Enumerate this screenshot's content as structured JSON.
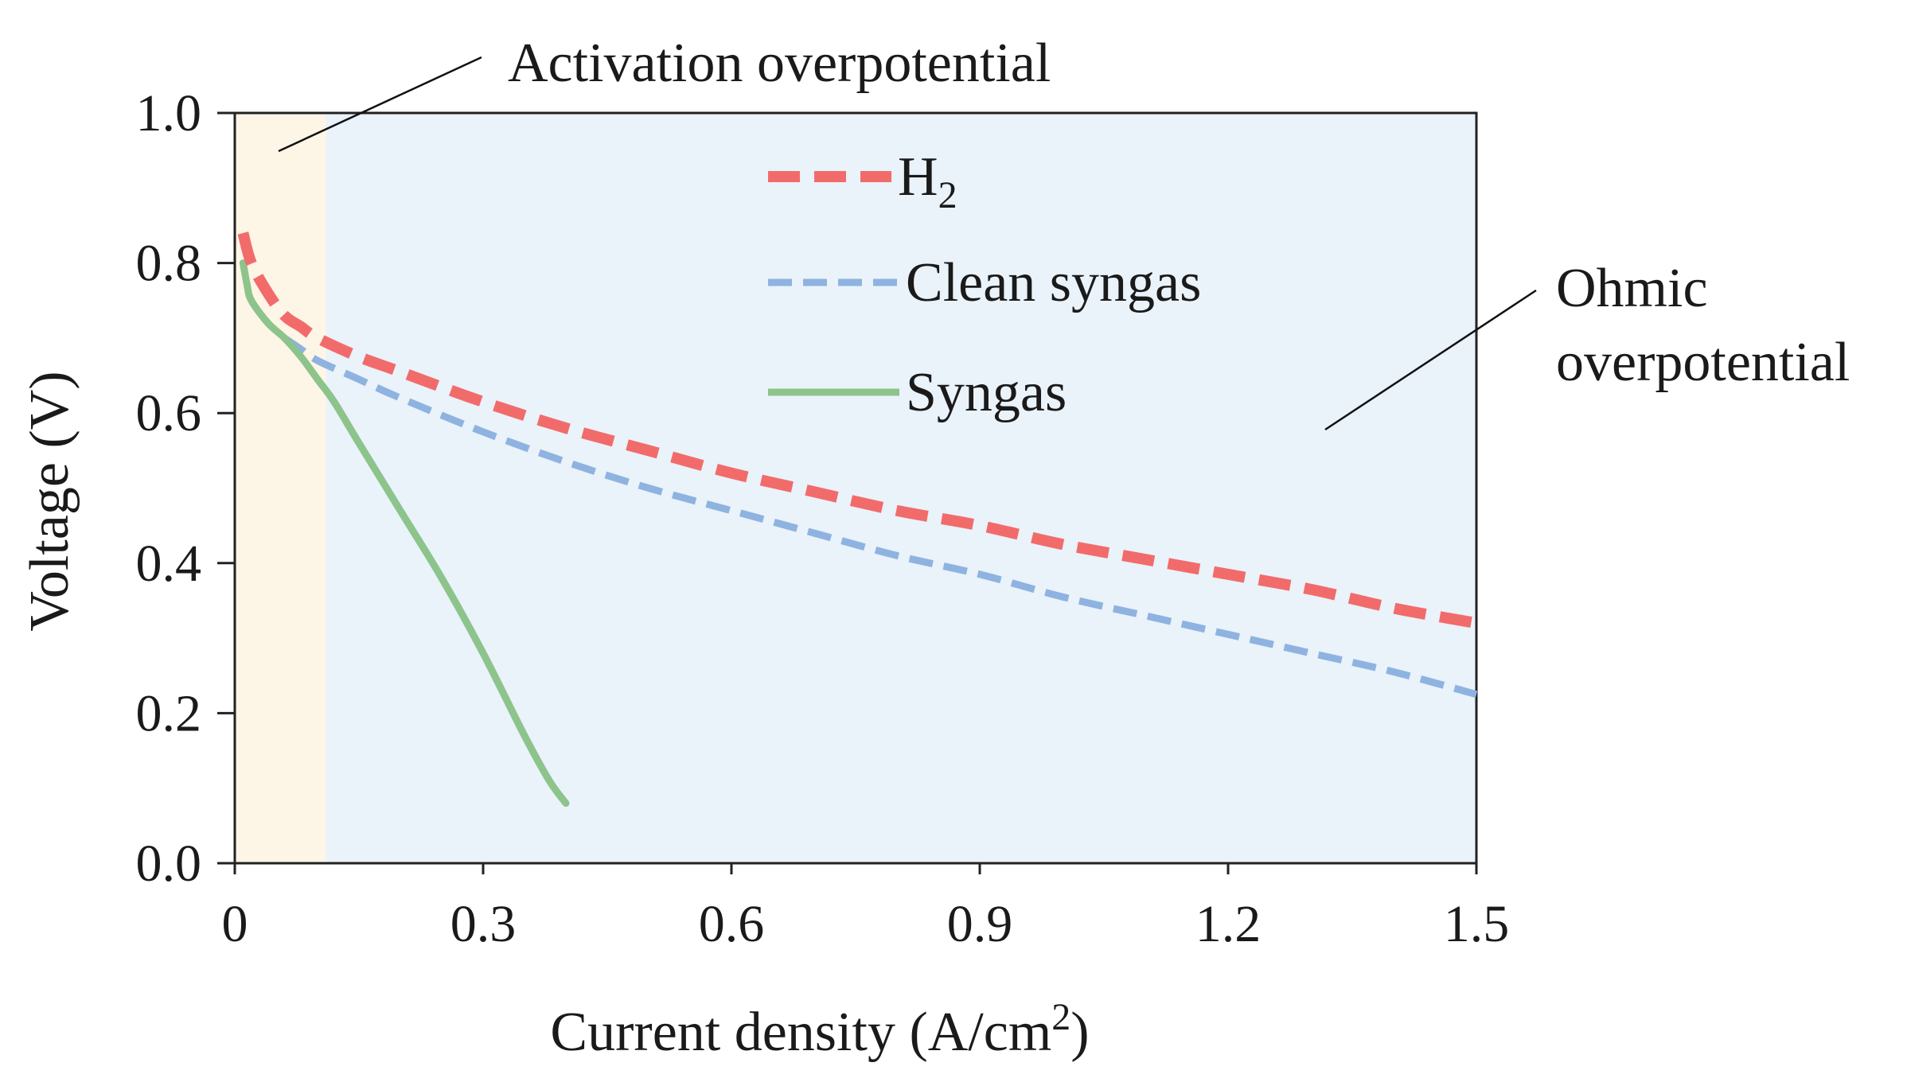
{
  "chart_data": {
    "type": "line",
    "xlabel": "Current density (A/cm",
    "xlabel_sup": "2",
    "xlabel_end": ")",
    "ylabel": "Voltage (V)",
    "xlim": [
      0,
      1.5
    ],
    "ylim": [
      0,
      1.0
    ],
    "xticks": [
      0,
      0.3,
      0.6,
      0.9,
      1.2,
      1.5
    ],
    "xtick_labels": [
      "0",
      "0.3",
      "0.6",
      "0.9",
      "1.2",
      "1.5"
    ],
    "yticks": [
      0,
      0.2,
      0.4,
      0.6,
      0.8,
      1.0
    ],
    "ytick_labels": [
      "0.0",
      "0.2",
      "0.4",
      "0.6",
      "0.8",
      "1.0"
    ],
    "regions": [
      {
        "name": "Activation overpotential",
        "x_range": [
          0,
          0.11
        ],
        "color": "#fdf5e6"
      },
      {
        "name": "Ohmic overpotential",
        "x_range": [
          0.11,
          1.5
        ],
        "color": "#eaf2fa"
      }
    ],
    "annotations": {
      "activation": "Activation overpotential",
      "ohmic_line1": "Ohmic",
      "ohmic_line2": "overpotential"
    },
    "legend_position": "top-center",
    "series": [
      {
        "name": "H",
        "name_sub": "2",
        "color": "#f26b6b",
        "style": "dashed",
        "x": [
          0.01,
          0.02,
          0.04,
          0.06,
          0.08,
          0.1,
          0.15,
          0.2,
          0.3,
          0.4,
          0.5,
          0.6,
          0.7,
          0.8,
          0.9,
          1.0,
          1.1,
          1.2,
          1.3,
          1.4,
          1.5
        ],
        "y": [
          0.84,
          0.8,
          0.76,
          0.73,
          0.715,
          0.7,
          0.675,
          0.655,
          0.615,
          0.58,
          0.55,
          0.52,
          0.495,
          0.47,
          0.45,
          0.425,
          0.405,
          0.385,
          0.365,
          0.34,
          0.32
        ]
      },
      {
        "name": "Clean syngas",
        "color": "#8fb3e0",
        "style": "dashed",
        "x": [
          0.06,
          0.08,
          0.1,
          0.15,
          0.2,
          0.3,
          0.4,
          0.5,
          0.6,
          0.7,
          0.8,
          0.9,
          1.0,
          1.1,
          1.2,
          1.3,
          1.4,
          1.5
        ],
        "y": [
          0.7,
          0.685,
          0.67,
          0.645,
          0.62,
          0.575,
          0.535,
          0.5,
          0.47,
          0.44,
          0.41,
          0.385,
          0.355,
          0.33,
          0.305,
          0.28,
          0.255,
          0.225
        ]
      },
      {
        "name": "Syngas",
        "color": "#8cc48c",
        "style": "solid",
        "x": [
          0.01,
          0.015,
          0.02,
          0.04,
          0.06,
          0.08,
          0.1,
          0.12,
          0.15,
          0.2,
          0.25,
          0.3,
          0.35,
          0.38,
          0.4
        ],
        "y": [
          0.8,
          0.77,
          0.75,
          0.72,
          0.7,
          0.675,
          0.645,
          0.615,
          0.56,
          0.47,
          0.38,
          0.28,
          0.17,
          0.11,
          0.08
        ]
      }
    ]
  }
}
